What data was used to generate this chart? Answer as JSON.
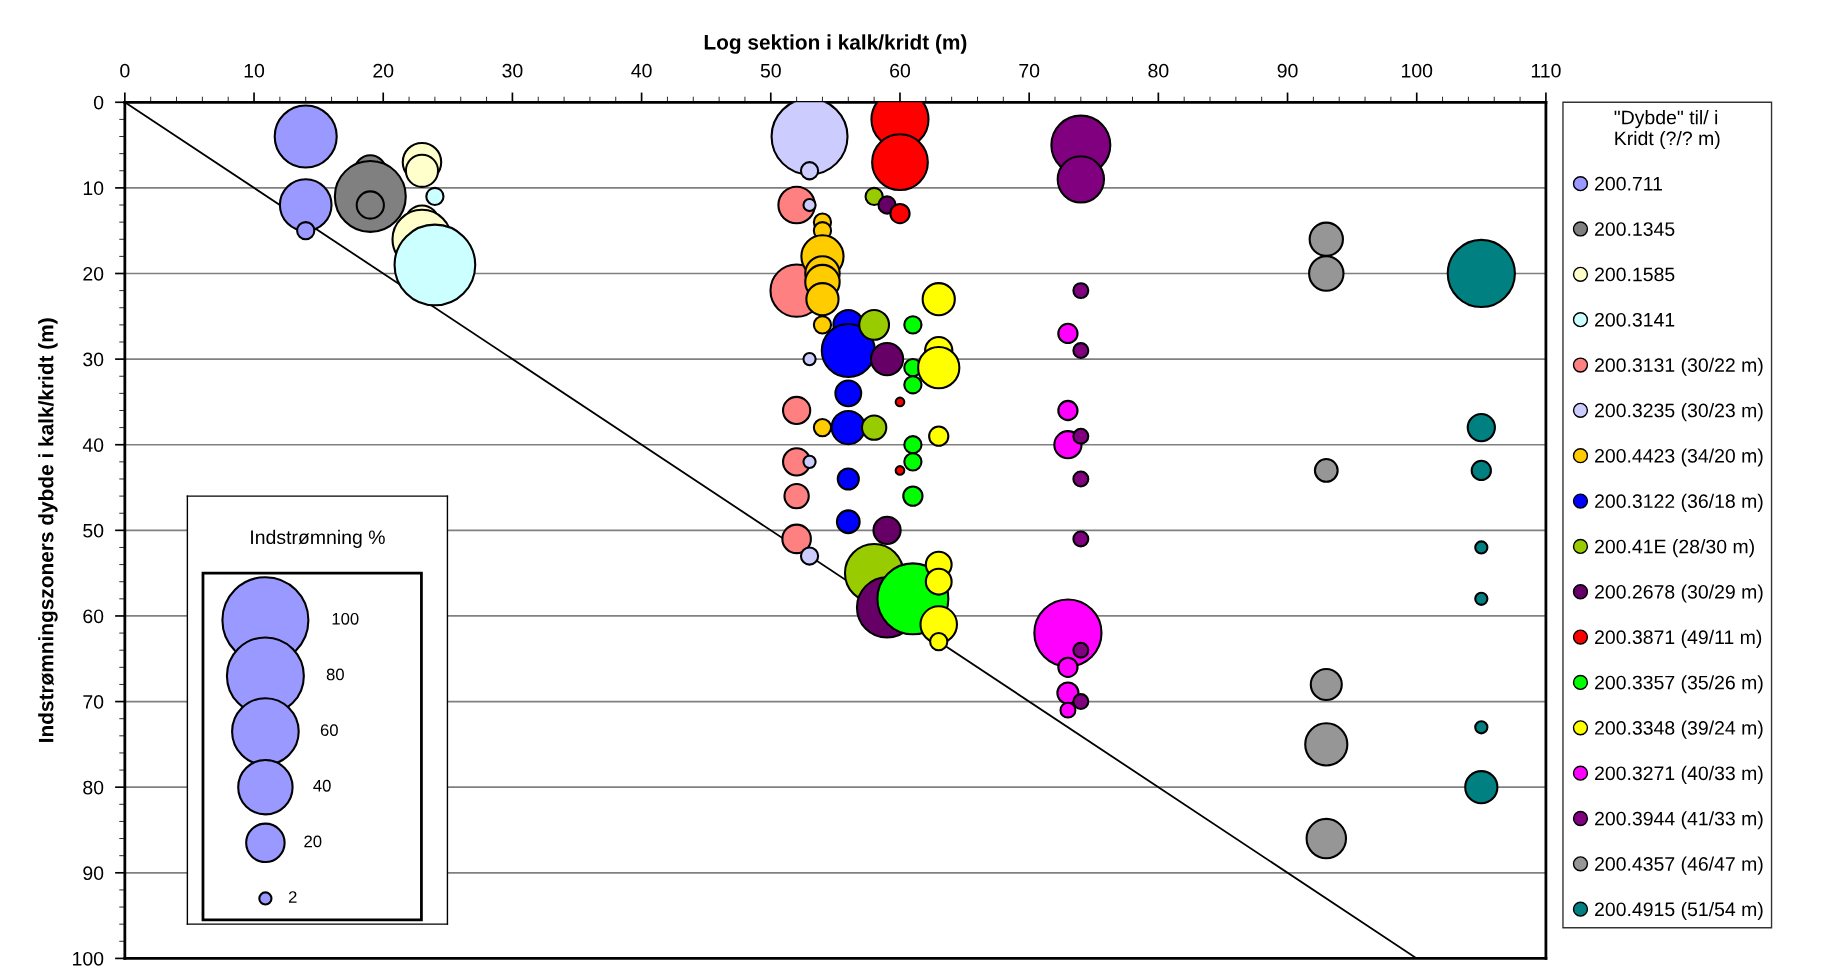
{
  "chart_data": {
    "type": "bubble",
    "xlabel": "Log sektion i kalk/kridt (m)",
    "ylabel": "Indstrømningszoners dybde i kalk/kridt (m)",
    "legend_title": "\"Dybde\" til/ i\nKridt (?/? m)",
    "xlim": [
      0,
      110
    ],
    "xticks": [
      0,
      10,
      20,
      30,
      40,
      50,
      60,
      70,
      80,
      90,
      100,
      110
    ],
    "ylim": [
      100,
      0
    ],
    "yticks": [
      0,
      10,
      20,
      30,
      40,
      50,
      60,
      70,
      80,
      90,
      100
    ],
    "grid": "y",
    "legend": "right",
    "marker": "circle",
    "size_legend": [
      100,
      80,
      60,
      40,
      20,
      2
    ],
    "annotations": [
      "Indstrømning %"
    ],
    "series": [
      {
        "type": "line",
        "marker": "none",
        "color": "#000000",
        "x": [
          0,
          100
        ],
        "values": [
          0,
          100
        ]
      },
      {
        "name": "200.711",
        "color": "#9999ff",
        "x": [
          14,
          14,
          14
        ],
        "values": [
          4,
          12,
          15
        ],
        "sizes": [
          52,
          36,
          4
        ]
      },
      {
        "name": "200.1345",
        "color": "#808080",
        "x": [
          19,
          19,
          19
        ],
        "values": [
          8,
          11,
          12
        ],
        "sizes": [
          13,
          68,
          10
        ]
      },
      {
        "name": "200.1585",
        "color": "#ffffcc",
        "x": [
          23,
          23,
          23,
          23
        ],
        "values": [
          7,
          8,
          14,
          16
        ],
        "sizes": [
          20,
          14,
          15,
          47
        ]
      },
      {
        "name": "200.3141",
        "color": "#ccffff",
        "x": [
          24,
          24
        ],
        "values": [
          11,
          19
        ],
        "sizes": [
          4,
          88
        ]
      },
      {
        "name": "200.3131 (30/22 m)",
        "color": "#ff8080",
        "x": [
          52,
          52,
          52,
          52,
          52,
          52
        ],
        "values": [
          12,
          22,
          36,
          42,
          46,
          51
        ],
        "sizes": [
          18,
          37,
          10,
          10,
          8,
          11
        ]
      },
      {
        "name": "200.3235 (30/23 m)",
        "color": "#ccccff",
        "x": [
          53,
          53,
          53,
          53,
          53,
          53
        ],
        "values": [
          4,
          8,
          12,
          30,
          42,
          53
        ],
        "sizes": [
          78,
          4,
          2,
          2,
          2,
          4
        ]
      },
      {
        "name": "200.4423 (34/20 m)",
        "color": "#ffcc00",
        "x": [
          54,
          54,
          54,
          54,
          54,
          54,
          54,
          54
        ],
        "values": [
          14,
          15,
          18,
          20,
          21,
          23,
          26,
          38
        ],
        "sizes": [
          4,
          4,
          24,
          16,
          16,
          14,
          4,
          4
        ]
      },
      {
        "name": "200.3122 (36/18 m)",
        "color": "#0000ff",
        "x": [
          56,
          56,
          56,
          56,
          56,
          56
        ],
        "values": [
          26,
          29,
          34,
          38,
          44,
          49
        ],
        "sizes": [
          12,
          38,
          9,
          15,
          6,
          7
        ]
      },
      {
        "name": "200.41E (28/30 m)",
        "color": "#99cc00",
        "x": [
          58,
          58,
          58,
          58
        ],
        "values": [
          11,
          26,
          38,
          55
        ],
        "sizes": [
          4,
          12,
          8,
          46
        ]
      },
      {
        "name": "200.2678 (30/29 m)",
        "color": "#660066",
        "x": [
          59,
          59,
          59,
          59
        ],
        "values": [
          12,
          30,
          50,
          59
        ],
        "sizes": [
          4,
          14,
          10,
          49
        ]
      },
      {
        "name": "200.3871 (49/11 m)",
        "color": "#ff0000",
        "x": [
          60,
          60,
          60,
          60,
          60
        ],
        "values": [
          2,
          7,
          13,
          35,
          43
        ],
        "sizes": [
          44,
          42,
          5,
          1,
          1
        ]
      },
      {
        "name": "200.3357 (35/26 m)",
        "color": "#00ff00",
        "x": [
          61,
          61,
          61,
          61,
          61,
          61,
          61
        ],
        "values": [
          26,
          31,
          33,
          40,
          42,
          46,
          58
        ],
        "sizes": [
          4,
          4,
          4,
          4,
          4,
          5,
          68
        ]
      },
      {
        "name": "200.3348 (39/24 m)",
        "color": "#ffff00",
        "x": [
          63,
          63,
          63,
          63,
          63,
          63,
          63,
          63
        ],
        "values": [
          23,
          29,
          31,
          39,
          54,
          56,
          61,
          63
        ],
        "sizes": [
          14,
          10,
          23,
          5,
          9,
          9,
          18,
          4
        ]
      },
      {
        "name": "200.3271 (40/33 m)",
        "color": "#ff00ff",
        "x": [
          73,
          73,
          73,
          73,
          73,
          73,
          73
        ],
        "values": [
          27,
          36,
          40,
          62,
          66,
          69,
          71
        ],
        "sizes": [
          5,
          5,
          10,
          61,
          5,
          6,
          3
        ]
      },
      {
        "name": "200.3944 (41/33 m)",
        "color": "#800080",
        "x": [
          74,
          74,
          74,
          74,
          74,
          74,
          74,
          74,
          74
        ],
        "values": [
          5,
          9,
          22,
          29,
          39,
          44,
          51,
          64,
          70
        ],
        "sizes": [
          47,
          29,
          3,
          3,
          3,
          3,
          3,
          3,
          3
        ]
      },
      {
        "name": "200.4357 (46/47 m)",
        "color": "#969696",
        "x": [
          93,
          93,
          93,
          93,
          93,
          93
        ],
        "values": [
          16,
          20,
          43,
          68,
          75,
          86
        ],
        "sizes": [
          15,
          16,
          7,
          13,
          24,
          21
        ]
      },
      {
        "name": "200.4915 (51/54 m)",
        "color": "#008080",
        "x": [
          105,
          105,
          105,
          105,
          105,
          105,
          105
        ],
        "values": [
          20,
          38,
          43,
          52,
          58,
          73,
          80
        ],
        "sizes": [
          61,
          10,
          5,
          2,
          2,
          2,
          14
        ]
      }
    ]
  }
}
